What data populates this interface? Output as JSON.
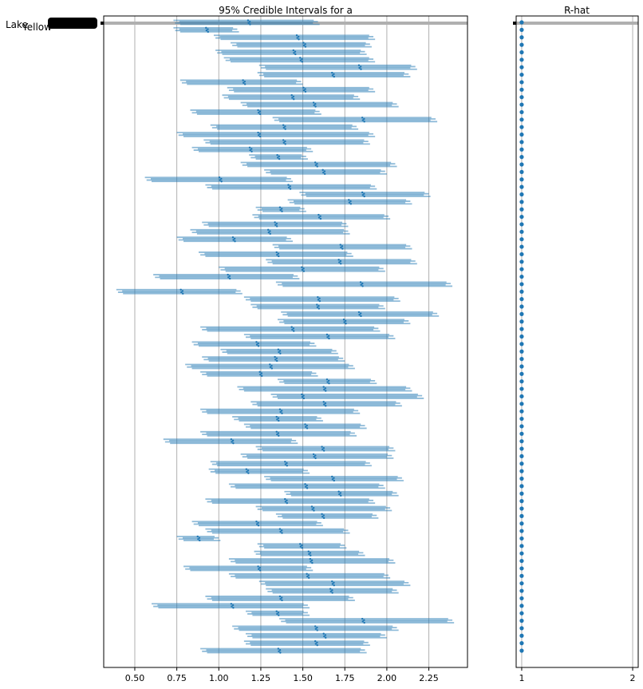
{
  "chart_data": [
    {
      "type": "forest",
      "title": "95% Credible Intervals for a",
      "xlim": [
        0.315,
        2.48
      ],
      "xticks": [
        "0.50",
        "0.75",
        "1.00",
        "1.25",
        "1.50",
        "1.75",
        "2.00",
        "2.25"
      ],
      "xtick_values": [
        0.5,
        0.75,
        1.0,
        1.25,
        1.5,
        1.75,
        2.0,
        2.25
      ],
      "ytick_labels_visible": [
        "Lake",
        "Yellow"
      ],
      "grid": "vertical",
      "color": "#1f77b4",
      "highlight_band_color": "#b0b0b0",
      "means": [
        1.18,
        0.93,
        1.47,
        1.51,
        1.45,
        1.49,
        1.84,
        1.68,
        1.15,
        1.51,
        1.44,
        1.57,
        1.24,
        1.86,
        1.39,
        1.24,
        1.39,
        1.19,
        1.354,
        1.58,
        1.625,
        1.01,
        1.42,
        1.86,
        1.78,
        1.37,
        1.6,
        1.34,
        1.3,
        1.09,
        1.73,
        1.35,
        1.72,
        1.5,
        1.06,
        1.85,
        0.78,
        1.595,
        1.59,
        1.84,
        1.75,
        1.44,
        1.65,
        1.23,
        1.36,
        1.34,
        1.31,
        1.25,
        1.65,
        1.63,
        1.5,
        1.63,
        1.37,
        1.35,
        1.52,
        1.35,
        1.08,
        1.62,
        1.57,
        1.4,
        1.17,
        1.68,
        1.52,
        1.72,
        1.4,
        1.56,
        1.62,
        1.23,
        1.37,
        0.88,
        1.49,
        1.54,
        1.55,
        1.24,
        1.53,
        1.68,
        1.67,
        1.37,
        1.08,
        1.35,
        1.86,
        1.58,
        1.63,
        1.58,
        1.36
      ],
      "lower": [
        0.75,
        0.75,
        0.99,
        1.09,
        1.0,
        1.05,
        1.26,
        1.25,
        0.79,
        1.07,
        1.04,
        1.15,
        0.85,
        1.34,
        0.97,
        0.77,
        0.93,
        0.86,
        1.2,
        1.15,
        1.29,
        0.58,
        0.94,
        1.5,
        1.43,
        1.24,
        1.22,
        0.92,
        0.85,
        0.77,
        1.34,
        0.9,
        1.3,
        1.02,
        0.63,
        1.36,
        0.41,
        1.17,
        1.21,
        1.39,
        1.37,
        0.91,
        1.17,
        0.86,
        1.03,
        0.92,
        0.82,
        0.91,
        1.37,
        1.13,
        1.33,
        1.21,
        0.91,
        1.1,
        1.17,
        0.91,
        0.69,
        1.24,
        1.15,
        0.97,
        0.96,
        1.29,
        1.08,
        1.41,
        0.94,
        1.24,
        1.36,
        0.86,
        0.94,
        0.77,
        1.25,
        1.23,
        1.08,
        0.81,
        1.08,
        1.26,
        1.3,
        0.94,
        0.62,
        1.18,
        1.38,
        1.1,
        1.18,
        1.17,
        0.91
      ],
      "upper": [
        1.58,
        1.1,
        1.91,
        1.89,
        1.86,
        1.91,
        2.16,
        2.12,
        1.48,
        1.91,
        1.82,
        2.05,
        1.59,
        2.28,
        1.81,
        1.91,
        1.88,
        1.54,
        1.51,
        2.04,
        1.98,
        1.42,
        1.92,
        2.24,
        2.13,
        1.5,
        2.0,
        1.75,
        1.76,
        1.42,
        2.13,
        1.78,
        2.16,
        1.97,
        1.46,
        2.37,
        1.12,
        2.06,
        1.97,
        2.29,
        2.12,
        1.94,
        2.03,
        1.56,
        1.69,
        1.73,
        1.79,
        1.57,
        1.92,
        2.13,
        2.2,
        2.07,
        1.82,
        1.6,
        1.86,
        1.8,
        1.45,
        2.03,
        2.02,
        1.89,
        1.52,
        2.08,
        1.97,
        2.05,
        1.91,
        2.01,
        1.93,
        1.6,
        1.76,
        0.99,
        1.74,
        1.85,
        2.03,
        1.54,
        2.0,
        2.12,
        2.05,
        1.79,
        1.52,
        1.52,
        2.38,
        2.05,
        1.98,
        1.88,
        1.86
      ]
    },
    {
      "type": "scatter",
      "title": "R-hat",
      "xlim": [
        0.95,
        2.05
      ],
      "xticks": [
        "1",
        "2"
      ],
      "xtick_values": [
        1,
        2
      ],
      "value_all_rows": 1.0
    }
  ]
}
